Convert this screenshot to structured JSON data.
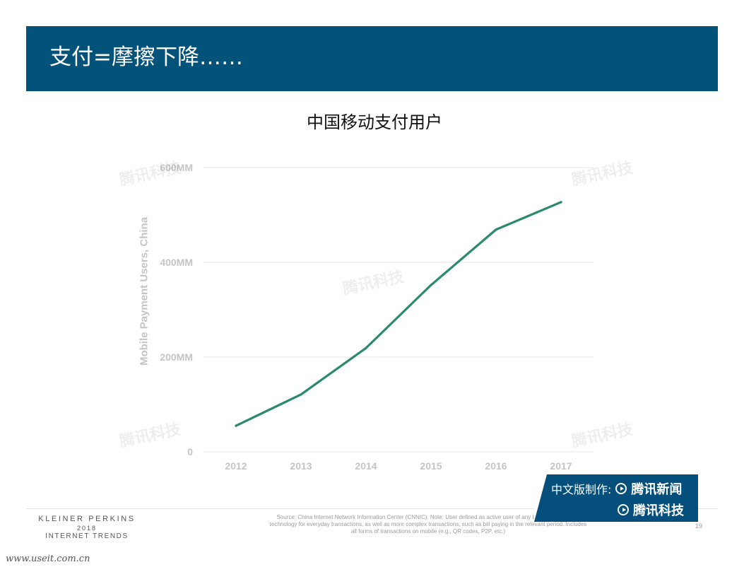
{
  "header": {
    "title": "支付=摩擦下降……"
  },
  "chart_data": {
    "type": "line",
    "title": "中国移动支付用户",
    "xlabel": "",
    "ylabel": "Mobile Payment Users, China",
    "x": [
      "2012",
      "2013",
      "2014",
      "2015",
      "2016",
      "2017"
    ],
    "series": [
      {
        "values": [
          55,
          121,
          219,
          352,
          469,
          527
        ]
      }
    ],
    "y_ticks": [
      0,
      200,
      400,
      600
    ],
    "y_tick_labels": [
      "0",
      "200MM",
      "400MM",
      "600MM"
    ],
    "ylim": [
      0,
      600
    ],
    "grid": "horizontal",
    "line_color": "#2a8a6c",
    "grid_color": "#e4e4e4",
    "tick_color": "#c4c4c4"
  },
  "footer": {
    "logo_line1": "KLEINER PERKINS",
    "logo_line2": "2018",
    "logo_line3": "INTERNET TRENDS",
    "source": "Source: China Internet Network Information Center (CNNIC).  Note: User defined as active user of any bypassed payment technology for everyday transactions, as well as more complex transactions, such as bill paying in the relevant period. Includes all forms of transactions on mobile (e.g., QR codes, P2P, etc.)",
    "page_number": "19"
  },
  "credit": {
    "prefix": "中文版制作:",
    "brand1": "腾讯新闻",
    "brand2": "腾讯科技"
  },
  "watermark_text": "腾讯科技",
  "site_url": "www.useit.com.cn",
  "colors": {
    "header_bg": "#03527a",
    "credit_bg": "#044f7b"
  }
}
